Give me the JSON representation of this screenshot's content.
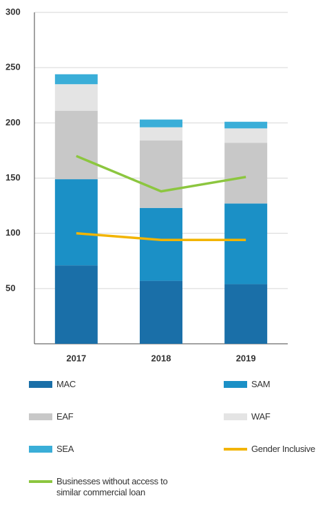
{
  "chart_data": {
    "type": "bar",
    "stacked": true,
    "categories": [
      "2017",
      "2018",
      "2019"
    ],
    "ylim": [
      0,
      300
    ],
    "yticks": [
      50,
      100,
      150,
      200,
      250,
      300
    ],
    "grid": true,
    "series": [
      {
        "name": "MAC",
        "color": "#1a6fa8",
        "values": [
          71,
          57,
          54
        ]
      },
      {
        "name": "SAM",
        "color": "#1b90c6",
        "values": [
          78,
          66,
          73
        ]
      },
      {
        "name": "EAF",
        "color": "#c8c8c8",
        "values": [
          62,
          61,
          55
        ]
      },
      {
        "name": "WAF",
        "color": "#e4e4e4",
        "values": [
          24,
          12,
          13
        ]
      },
      {
        "name": "SEA",
        "color": "#3aaed8",
        "values": [
          9,
          7,
          6
        ]
      },
      {
        "name": "Gender Inclusive",
        "type": "line",
        "color": "#f2b400",
        "values": [
          100,
          94,
          94
        ]
      },
      {
        "name": "Businesses without access to similar commercial loan",
        "type": "line",
        "color": "#8cc63f",
        "values": [
          170,
          138,
          151
        ]
      }
    ]
  }
}
